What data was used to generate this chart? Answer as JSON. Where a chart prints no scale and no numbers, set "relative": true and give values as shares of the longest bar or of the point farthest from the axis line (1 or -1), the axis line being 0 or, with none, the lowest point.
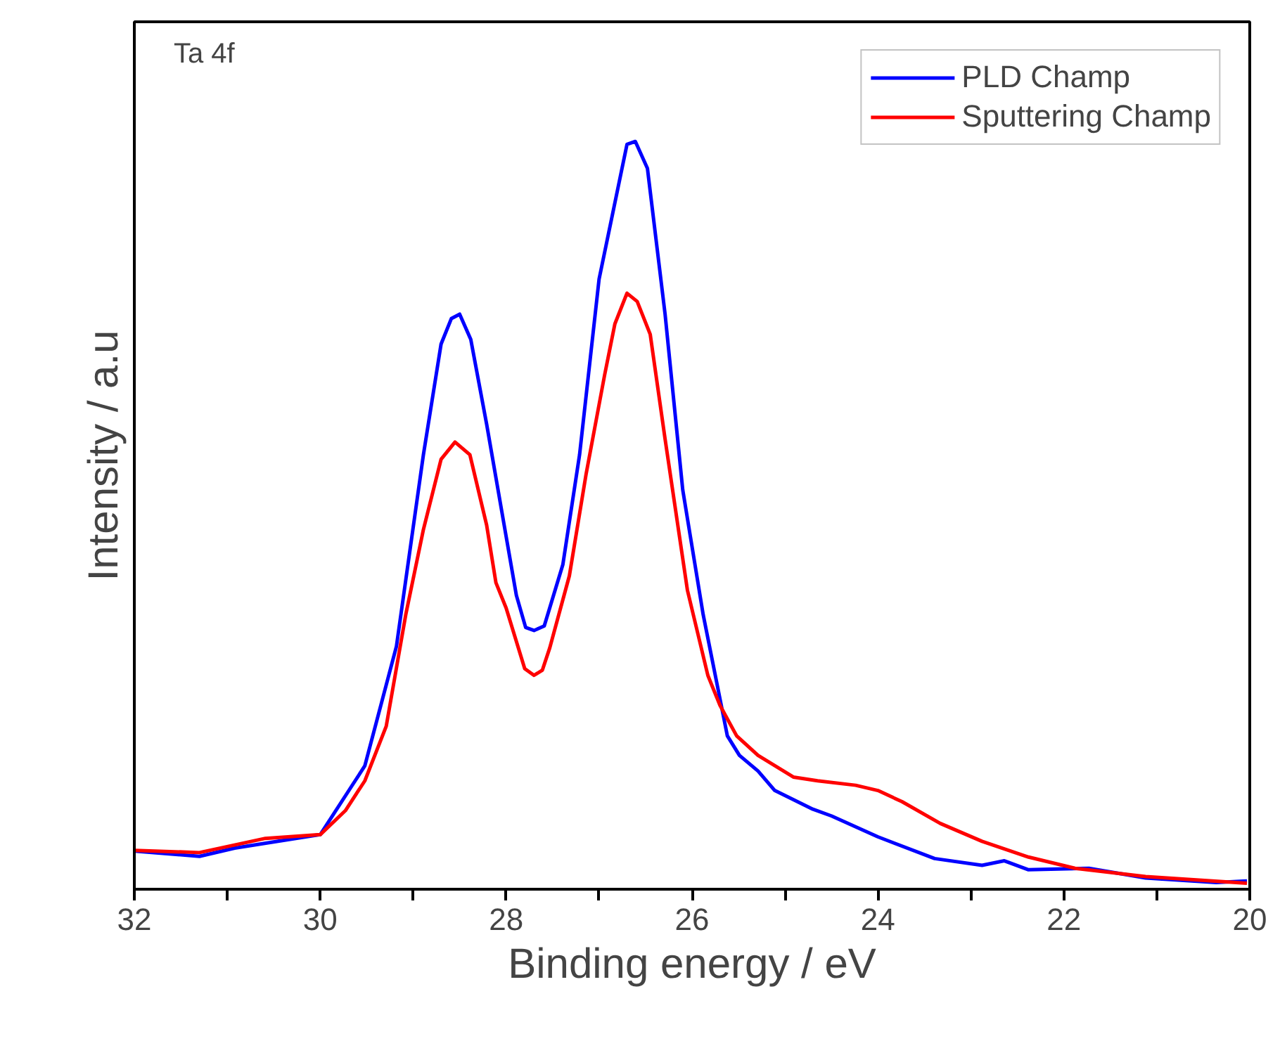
{
  "chart_data": {
    "type": "line",
    "relative": true,
    "xlabel": "Binding energy / eV",
    "ylabel": "Intensity / a.u",
    "annotations": [
      "Ta 4f"
    ],
    "xlim": [
      32,
      20
    ],
    "xticks": [
      32,
      {
        "value": 31,
        "label": null
      },
      30,
      {
        "value": 29,
        "label": null
      },
      28,
      {
        "value": 27,
        "label": null
      },
      26,
      {
        "value": 25,
        "label": null
      },
      24,
      {
        "value": 23,
        "label": null
      },
      22,
      {
        "value": 21,
        "label": null
      },
      20
    ],
    "tick_labels": "x",
    "grid": false,
    "legend": "top right",
    "line_style": "solid",
    "marker": "none",
    "series": [
      {
        "name": "PLD Champ",
        "color": "#0000ff",
        "x": [
          32.0,
          31.3,
          30.92,
          30.0,
          29.52,
          29.18,
          28.89,
          28.7,
          28.59,
          28.5,
          28.38,
          28.21,
          27.89,
          27.79,
          27.7,
          27.59,
          27.39,
          27.21,
          27.0,
          26.7,
          26.61,
          26.48,
          26.29,
          26.1,
          25.88,
          25.62,
          25.49,
          25.29,
          25.11,
          24.7,
          24.5,
          24.0,
          23.39,
          22.88,
          22.64,
          22.38,
          21.73,
          21.12,
          20.36,
          20.03
        ],
        "values": [
          0.051,
          0.044,
          0.055,
          0.073,
          0.165,
          0.325,
          0.581,
          0.729,
          0.763,
          0.769,
          0.735,
          0.622,
          0.393,
          0.35,
          0.346,
          0.352,
          0.434,
          0.581,
          0.816,
          0.996,
          1.0,
          0.964,
          0.769,
          0.534,
          0.367,
          0.205,
          0.179,
          0.158,
          0.132,
          0.107,
          0.098,
          0.07,
          0.041,
          0.032,
          0.038,
          0.026,
          0.028,
          0.015,
          0.009,
          0.011
        ]
      },
      {
        "name": "Sputtering Champ",
        "color": "#ff0000",
        "x": [
          32.0,
          31.3,
          30.59,
          30.0,
          29.73,
          29.52,
          29.29,
          29.08,
          28.89,
          28.7,
          28.55,
          28.39,
          28.21,
          28.11,
          28.0,
          27.8,
          27.7,
          27.61,
          27.53,
          27.32,
          27.14,
          26.94,
          26.83,
          26.7,
          26.59,
          26.45,
          26.29,
          26.05,
          25.83,
          25.7,
          25.52,
          25.29,
          24.91,
          24.65,
          24.24,
          24.0,
          23.74,
          23.33,
          22.88,
          22.38,
          21.88,
          21.12,
          20.03
        ],
        "values": [
          0.052,
          0.049,
          0.068,
          0.073,
          0.105,
          0.145,
          0.218,
          0.367,
          0.481,
          0.575,
          0.598,
          0.581,
          0.487,
          0.41,
          0.376,
          0.295,
          0.286,
          0.293,
          0.323,
          0.419,
          0.555,
          0.688,
          0.756,
          0.797,
          0.786,
          0.742,
          0.602,
          0.4,
          0.286,
          0.246,
          0.205,
          0.179,
          0.15,
          0.145,
          0.139,
          0.132,
          0.117,
          0.088,
          0.064,
          0.043,
          0.028,
          0.017,
          0.008
        ]
      }
    ]
  }
}
